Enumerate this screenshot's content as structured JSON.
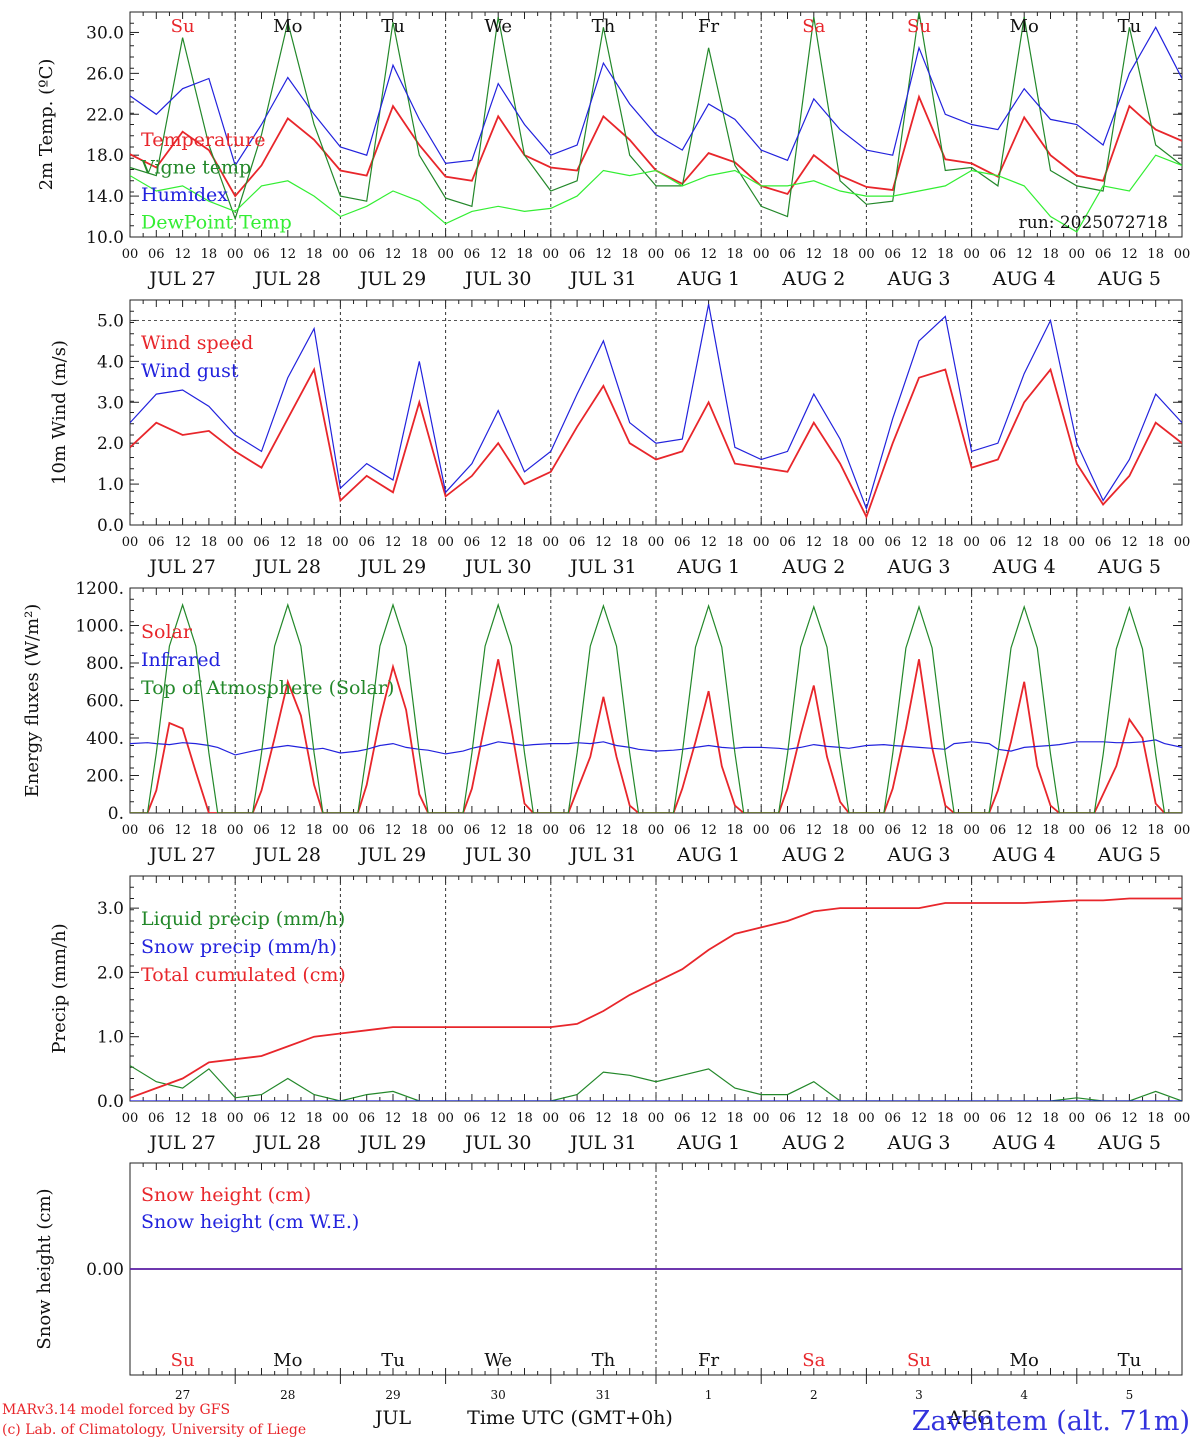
{
  "run_label": "run: 2025072718",
  "credit": [
    "MARv3.14 model forced by GFS",
    "(c) Lab. of Climatology, University of Liege"
  ],
  "station": "Zaventem (alt. 71m)",
  "time_axis": {
    "hour_ticks": [
      "00",
      "06",
      "12",
      "18"
    ],
    "day_labels": [
      "JUL 27",
      "JUL 28",
      "JUL 29",
      "JUL 30",
      "JUL 31",
      "AUG  1",
      "AUG  2",
      "AUG  3",
      "AUG  4",
      "AUG  5"
    ],
    "weekdays": [
      "Su",
      "Mo",
      "Tu",
      "We",
      "Th",
      "Fr",
      "Sa",
      "Su",
      "Mo",
      "Tu"
    ],
    "weekday_colors": [
      "#e8262b",
      "#111111",
      "#111111",
      "#111111",
      "#111111",
      "#111111",
      "#e8262b",
      "#e8262b",
      "#111111",
      "#111111"
    ],
    "day_numbers": [
      "27",
      "28",
      "29",
      "30",
      "31",
      "1",
      "2",
      "3",
      "4",
      "5"
    ],
    "month_labels": [
      "JUL",
      "AUG"
    ],
    "xlabel": "Time UTC (GMT+0h)"
  },
  "chart_data": [
    {
      "type": "line",
      "panel": "temperature",
      "ylabel": "2m Temp. (ºC)",
      "ylim": [
        10,
        32
      ],
      "yticks": [
        "10.0",
        "14.0",
        "18.0",
        "22.0",
        "26.0",
        "30.0"
      ],
      "x_unit": "hours since 2025-07-27 00 UTC",
      "x": [
        0,
        6,
        12,
        18,
        24,
        30,
        36,
        42,
        48,
        54,
        60,
        66,
        72,
        78,
        84,
        90,
        96,
        102,
        108,
        114,
        120,
        126,
        132,
        138,
        144,
        150,
        156,
        162,
        168,
        174,
        180,
        186,
        192,
        198,
        204,
        210,
        216,
        222,
        228,
        234,
        240
      ],
      "series": [
        {
          "name": "Temperature",
          "color": "#e8262b",
          "values": [
            18.1,
            16.8,
            20.3,
            18.5,
            14.0,
            17.0,
            21.6,
            19.5,
            16.5,
            16.0,
            22.8,
            19.0,
            15.9,
            15.5,
            21.8,
            18.0,
            16.8,
            16.5,
            21.8,
            19.5,
            16.5,
            15.2,
            18.2,
            17.3,
            15.0,
            14.2,
            18.0,
            16.0,
            14.9,
            14.6,
            23.7,
            17.6,
            17.2,
            15.9,
            21.7,
            18.0,
            16.0,
            15.5,
            22.8,
            20.5,
            19.4
          ]
        },
        {
          "name": "Vigne temp",
          "color": "#23882a",
          "values": [
            16.8,
            16.0,
            29.5,
            19.0,
            11.8,
            20.0,
            31.0,
            21.0,
            14.0,
            13.5,
            31.0,
            18.0,
            13.8,
            13.0,
            31.5,
            18.0,
            14.5,
            15.5,
            30.5,
            18.0,
            15.0,
            15.0,
            28.5,
            17.0,
            13.0,
            12.0,
            31.5,
            15.5,
            13.2,
            13.5,
            32.0,
            16.5,
            16.8,
            15.0,
            31.5,
            16.5,
            15.0,
            14.5,
            30.5,
            19.0,
            17.0
          ]
        },
        {
          "name": "Humidex",
          "color": "#2222dd",
          "values": [
            23.8,
            22.0,
            24.5,
            25.5,
            17.0,
            21.0,
            25.6,
            22.0,
            18.8,
            18.0,
            26.8,
            21.5,
            17.2,
            17.5,
            25.0,
            21.0,
            18.0,
            19.0,
            27.0,
            23.0,
            20.0,
            18.5,
            23.0,
            21.5,
            18.5,
            17.5,
            23.5,
            20.5,
            18.5,
            18.0,
            28.5,
            22.0,
            21.0,
            20.5,
            24.5,
            21.5,
            21.0,
            19.0,
            26.0,
            30.5,
            25.5
          ]
        },
        {
          "name": "DewPoint Temp",
          "color": "#33ee33",
          "values": [
            16.0,
            14.5,
            15.0,
            13.5,
            12.5,
            15.0,
            15.5,
            14.0,
            12.0,
            13.0,
            14.5,
            13.5,
            11.3,
            12.5,
            13.0,
            12.5,
            12.8,
            14.0,
            16.5,
            16.0,
            16.5,
            15.0,
            16.0,
            16.5,
            15.0,
            15.0,
            15.5,
            14.5,
            14.0,
            14.0,
            14.5,
            15.0,
            16.5,
            16.0,
            15.0,
            12.0,
            10.5,
            15.0,
            14.5,
            18.0,
            17.0
          ]
        }
      ]
    },
    {
      "type": "line",
      "panel": "wind",
      "ylabel": "10m Wind (m/s)",
      "ylim": [
        0,
        5.5
      ],
      "yticks": [
        "0.0",
        "1.0",
        "2.0",
        "3.0",
        "4.0",
        "5.0"
      ],
      "reference_line": 5.0,
      "x_unit": "hours since 2025-07-27 00 UTC",
      "x": [
        0,
        6,
        12,
        18,
        24,
        30,
        36,
        42,
        48,
        54,
        60,
        66,
        72,
        78,
        84,
        90,
        96,
        102,
        108,
        114,
        120,
        126,
        132,
        138,
        144,
        150,
        156,
        162,
        168,
        174,
        180,
        186,
        192,
        198,
        204,
        210,
        216,
        222,
        228,
        234,
        240
      ],
      "series": [
        {
          "name": "Wind speed",
          "color": "#e8262b",
          "values": [
            1.9,
            2.5,
            2.2,
            2.3,
            1.8,
            1.4,
            2.6,
            3.8,
            0.6,
            1.2,
            0.8,
            3.0,
            0.7,
            1.2,
            2.0,
            1.0,
            1.3,
            2.4,
            3.4,
            2.0,
            1.6,
            1.8,
            3.0,
            1.5,
            1.4,
            1.3,
            2.5,
            1.5,
            0.2,
            2.0,
            3.6,
            3.8,
            1.4,
            1.6,
            3.0,
            3.8,
            1.5,
            0.5,
            1.2,
            2.5,
            2.0
          ]
        },
        {
          "name": "Wind gust",
          "color": "#2222dd",
          "values": [
            2.5,
            3.2,
            3.3,
            2.9,
            2.2,
            1.8,
            3.6,
            4.8,
            0.9,
            1.5,
            1.1,
            4.0,
            0.8,
            1.5,
            2.8,
            1.3,
            1.8,
            3.2,
            4.5,
            2.5,
            2.0,
            2.1,
            5.4,
            1.9,
            1.6,
            1.8,
            3.2,
            2.1,
            0.4,
            2.6,
            4.5,
            5.1,
            1.8,
            2.0,
            3.7,
            5.0,
            2.0,
            0.6,
            1.6,
            3.2,
            2.5
          ]
        }
      ]
    },
    {
      "type": "line",
      "panel": "energy",
      "ylabel": "Energy fluxes (W/m²)",
      "ylim": [
        0,
        1200
      ],
      "yticks": [
        "0.",
        "200.",
        "400.",
        "600.",
        "800.",
        "1000.",
        "1200."
      ],
      "x_unit": "hours since 2025-07-27 00 UTC",
      "x": [
        0,
        4,
        6,
        9,
        12,
        15,
        18,
        20,
        24,
        28,
        30,
        33,
        36,
        39,
        42,
        44,
        48,
        52,
        54,
        57,
        60,
        63,
        66,
        68,
        72,
        76,
        78,
        81,
        84,
        87,
        90,
        92,
        96,
        100,
        102,
        105,
        108,
        111,
        114,
        116,
        120,
        124,
        126,
        129,
        132,
        135,
        138,
        140,
        144,
        148,
        150,
        153,
        156,
        159,
        162,
        164,
        168,
        172,
        174,
        177,
        180,
        183,
        186,
        188,
        192,
        196,
        198,
        201,
        204,
        207,
        210,
        212,
        216,
        220,
        222,
        225,
        228,
        231,
        234,
        236,
        240
      ],
      "series": [
        {
          "name": "Solar",
          "color": "#e8262b",
          "values": [
            0,
            0,
            120,
            480,
            450,
            220,
            0,
            0,
            0,
            0,
            120,
            400,
            700,
            520,
            150,
            0,
            0,
            0,
            150,
            500,
            780,
            550,
            100,
            0,
            0,
            0,
            130,
            480,
            820,
            450,
            50,
            0,
            0,
            0,
            120,
            300,
            620,
            300,
            40,
            0,
            0,
            0,
            130,
            380,
            650,
            250,
            40,
            0,
            0,
            0,
            130,
            420,
            680,
            300,
            60,
            0,
            0,
            0,
            130,
            450,
            820,
            350,
            40,
            0,
            0,
            0,
            120,
            380,
            700,
            250,
            40,
            0,
            0,
            0,
            100,
            250,
            500,
            400,
            50,
            0,
            0
          ]
        },
        {
          "name": "Infrared",
          "color": "#2222dd",
          "values": [
            370,
            375,
            370,
            365,
            375,
            370,
            360,
            350,
            310,
            330,
            340,
            350,
            360,
            350,
            340,
            345,
            320,
            330,
            340,
            360,
            370,
            350,
            340,
            335,
            315,
            330,
            345,
            360,
            380,
            370,
            360,
            365,
            370,
            370,
            375,
            370,
            380,
            360,
            350,
            340,
            330,
            335,
            340,
            350,
            360,
            350,
            345,
            350,
            350,
            345,
            340,
            350,
            365,
            355,
            350,
            345,
            360,
            365,
            360,
            355,
            350,
            345,
            340,
            370,
            380,
            370,
            340,
            330,
            350,
            355,
            360,
            365,
            380,
            380,
            380,
            375,
            375,
            380,
            390,
            370,
            350
          ]
        },
        {
          "name": "Top of Atmosphere (Solar)",
          "color": "#23882a",
          "values": [
            0,
            0,
            320,
            890,
            1110,
            890,
            320,
            0,
            0,
            0,
            320,
            890,
            1110,
            890,
            320,
            0,
            0,
            0,
            320,
            890,
            1110,
            890,
            320,
            0,
            0,
            0,
            320,
            890,
            1110,
            890,
            320,
            0,
            0,
            0,
            320,
            890,
            1105,
            890,
            320,
            0,
            0,
            0,
            320,
            885,
            1105,
            885,
            320,
            0,
            0,
            0,
            315,
            885,
            1100,
            885,
            315,
            0,
            0,
            0,
            315,
            880,
            1100,
            880,
            315,
            0,
            0,
            0,
            315,
            880,
            1100,
            880,
            315,
            0,
            0,
            0,
            310,
            875,
            1095,
            875,
            310,
            0,
            0
          ]
        }
      ]
    },
    {
      "type": "line",
      "panel": "precip",
      "ylabel": "Precip (mm/h)",
      "ylim": [
        0,
        3.5
      ],
      "yticks": [
        "0.0",
        "1.0",
        "2.0",
        "3.0"
      ],
      "x_unit": "hours since 2025-07-27 00 UTC",
      "x": [
        0,
        6,
        12,
        18,
        24,
        30,
        36,
        42,
        48,
        54,
        60,
        66,
        72,
        78,
        84,
        90,
        96,
        102,
        108,
        114,
        120,
        126,
        132,
        138,
        144,
        150,
        156,
        162,
        168,
        174,
        180,
        186,
        192,
        198,
        204,
        210,
        216,
        222,
        228,
        234,
        240
      ],
      "series": [
        {
          "name": "Liquid precip (mm/h)",
          "color": "#23882a",
          "values": [
            0.55,
            0.3,
            0.2,
            0.5,
            0.05,
            0.1,
            0.35,
            0.1,
            0.0,
            0.1,
            0.15,
            0.0,
            0.0,
            0.0,
            0.0,
            0.0,
            0.0,
            0.1,
            0.45,
            0.4,
            0.3,
            0.4,
            0.5,
            0.2,
            0.1,
            0.1,
            0.3,
            0.0,
            0.0,
            0.0,
            0.0,
            0.0,
            0.0,
            0.0,
            0.0,
            0.0,
            0.05,
            0.0,
            0.0,
            0.15,
            0.0
          ]
        },
        {
          "name": "Snow precip (mm/h)",
          "color": "#2222dd",
          "values": [
            0,
            0,
            0,
            0,
            0,
            0,
            0,
            0,
            0,
            0,
            0,
            0,
            0,
            0,
            0,
            0,
            0,
            0,
            0,
            0,
            0,
            0,
            0,
            0,
            0,
            0,
            0,
            0,
            0,
            0,
            0,
            0,
            0,
            0,
            0,
            0,
            0,
            0,
            0,
            0,
            0
          ]
        },
        {
          "name": "Total cumulated (cm)",
          "color": "#e8262b",
          "values": [
            0.05,
            0.2,
            0.35,
            0.6,
            0.65,
            0.7,
            0.85,
            1.0,
            1.05,
            1.1,
            1.15,
            1.15,
            1.15,
            1.15,
            1.15,
            1.15,
            1.15,
            1.2,
            1.4,
            1.65,
            1.85,
            2.05,
            2.35,
            2.6,
            2.7,
            2.8,
            2.95,
            3.0,
            3.0,
            3.0,
            3.0,
            3.08,
            3.08,
            3.08,
            3.08,
            3.1,
            3.12,
            3.12,
            3.15,
            3.15,
            3.15
          ]
        }
      ]
    },
    {
      "type": "line",
      "panel": "snow",
      "ylabel": "Snow height (cm)",
      "ylim": [
        -1,
        1
      ],
      "yticks": [
        "0.00"
      ],
      "x_unit": "hours since 2025-07-27 00 UTC",
      "x": [
        0,
        240
      ],
      "series": [
        {
          "name": "Snow height (cm)",
          "color": "#e8262b",
          "values": [
            0,
            0
          ]
        },
        {
          "name": "Snow height (cm W.E.)",
          "color": "#2222dd",
          "values": [
            0,
            0
          ]
        }
      ]
    }
  ]
}
